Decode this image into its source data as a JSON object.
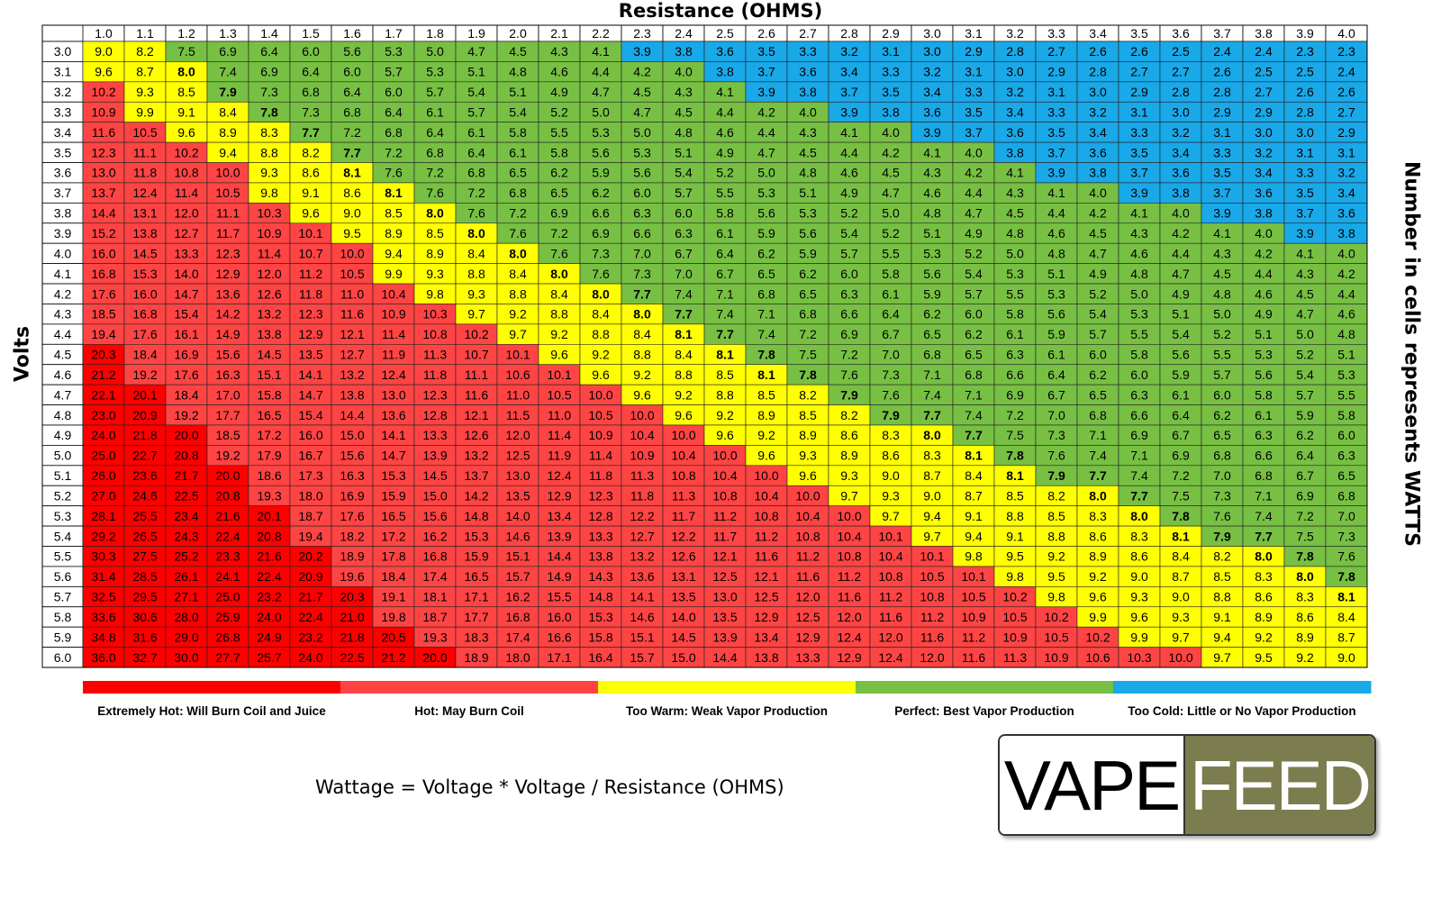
{
  "title": "Resistance (OHMS)",
  "ylabel": "Volts",
  "right_label": "Number in cells represents WATTS",
  "formula": "Wattage = Voltage * Voltage / Resistance (OHMS)",
  "logo": {
    "left_text": "VAPE",
    "right_text": "FEED"
  },
  "colors": {
    "extremely_hot": "#ff0000",
    "hot": "#ff4444",
    "too_warm": "#ffff00",
    "perfect": "#77c043",
    "too_cold": "#19a8e8",
    "logo_dark": "#7b7d4f"
  },
  "chart_data": {
    "type": "heatmap",
    "xlabel": "Resistance (OHMS)",
    "ylabel": "Volts",
    "columns": [
      "1.0",
      "1.1",
      "1.2",
      "1.3",
      "1.4",
      "1.5",
      "1.6",
      "1.7",
      "1.8",
      "1.9",
      "2.0",
      "2.1",
      "2.2",
      "2.3",
      "2.4",
      "2.5",
      "2.6",
      "2.7",
      "2.8",
      "2.9",
      "3.0",
      "3.1",
      "3.2",
      "3.3",
      "3.4",
      "3.5",
      "3.6",
      "3.7",
      "3.8",
      "3.9",
      "4.0"
    ],
    "rows": [
      "3.0",
      "3.1",
      "3.2",
      "3.3",
      "3.4",
      "3.5",
      "3.6",
      "3.7",
      "3.8",
      "3.9",
      "4.0",
      "4.1",
      "4.2",
      "4.3",
      "4.4",
      "4.5",
      "4.6",
      "4.7",
      "4.8",
      "4.9",
      "5.0",
      "5.1",
      "5.2",
      "5.3",
      "5.4",
      "5.5",
      "5.6",
      "5.7",
      "5.8",
      "5.9",
      "6.0"
    ],
    "values": [
      [
        "9.0",
        "8.2",
        "7.5",
        "6.9",
        "6.4",
        "6.0",
        "5.6",
        "5.3",
        "5.0",
        "4.7",
        "4.5",
        "4.3",
        "4.1",
        "3.9",
        "3.8",
        "3.6",
        "3.5",
        "3.3",
        "3.2",
        "3.1",
        "3.0",
        "2.9",
        "2.8",
        "2.7",
        "2.6",
        "2.6",
        "2.5",
        "2.4",
        "2.4",
        "2.3",
        "2.3"
      ],
      [
        "9.6",
        "8.7",
        "8.0",
        "7.4",
        "6.9",
        "6.4",
        "6.0",
        "5.7",
        "5.3",
        "5.1",
        "4.8",
        "4.6",
        "4.4",
        "4.2",
        "4.0",
        "3.8",
        "3.7",
        "3.6",
        "3.4",
        "3.3",
        "3.2",
        "3.1",
        "3.0",
        "2.9",
        "2.8",
        "2.7",
        "2.7",
        "2.6",
        "2.5",
        "2.5",
        "2.4"
      ],
      [
        "10.2",
        "9.3",
        "8.5",
        "7.9",
        "7.3",
        "6.8",
        "6.4",
        "6.0",
        "5.7",
        "5.4",
        "5.1",
        "4.9",
        "4.7",
        "4.5",
        "4.3",
        "4.1",
        "3.9",
        "3.8",
        "3.7",
        "3.5",
        "3.4",
        "3.3",
        "3.2",
        "3.1",
        "3.0",
        "2.9",
        "2.8",
        "2.8",
        "2.7",
        "2.6",
        "2.6"
      ],
      [
        "10.9",
        "9.9",
        "9.1",
        "8.4",
        "7.8",
        "7.3",
        "6.8",
        "6.4",
        "6.1",
        "5.7",
        "5.4",
        "5.2",
        "5.0",
        "4.7",
        "4.5",
        "4.4",
        "4.2",
        "4.0",
        "3.9",
        "3.8",
        "3.6",
        "3.5",
        "3.4",
        "3.3",
        "3.2",
        "3.1",
        "3.0",
        "2.9",
        "2.9",
        "2.8",
        "2.7"
      ],
      [
        "11.6",
        "10.5",
        "9.6",
        "8.9",
        "8.3",
        "7.7",
        "7.2",
        "6.8",
        "6.4",
        "6.1",
        "5.8",
        "5.5",
        "5.3",
        "5.0",
        "4.8",
        "4.6",
        "4.4",
        "4.3",
        "4.1",
        "4.0",
        "3.9",
        "3.7",
        "3.6",
        "3.5",
        "3.4",
        "3.3",
        "3.2",
        "3.1",
        "3.0",
        "3.0",
        "2.9"
      ],
      [
        "12.3",
        "11.1",
        "10.2",
        "9.4",
        "8.8",
        "8.2",
        "7.7",
        "7.2",
        "6.8",
        "6.4",
        "6.1",
        "5.8",
        "5.6",
        "5.3",
        "5.1",
        "4.9",
        "4.7",
        "4.5",
        "4.4",
        "4.2",
        "4.1",
        "4.0",
        "3.8",
        "3.7",
        "3.6",
        "3.5",
        "3.4",
        "3.3",
        "3.2",
        "3.1",
        "3.1"
      ],
      [
        "13.0",
        "11.8",
        "10.8",
        "10.0",
        "9.3",
        "8.6",
        "8.1",
        "7.6",
        "7.2",
        "6.8",
        "6.5",
        "6.2",
        "5.9",
        "5.6",
        "5.4",
        "5.2",
        "5.0",
        "4.8",
        "4.6",
        "4.5",
        "4.3",
        "4.2",
        "4.1",
        "3.9",
        "3.8",
        "3.7",
        "3.6",
        "3.5",
        "3.4",
        "3.3",
        "3.2"
      ],
      [
        "13.7",
        "12.4",
        "11.4",
        "10.5",
        "9.8",
        "9.1",
        "8.6",
        "8.1",
        "7.6",
        "7.2",
        "6.8",
        "6.5",
        "6.2",
        "6.0",
        "5.7",
        "5.5",
        "5.3",
        "5.1",
        "4.9",
        "4.7",
        "4.6",
        "4.4",
        "4.3",
        "4.1",
        "4.0",
        "3.9",
        "3.8",
        "3.7",
        "3.6",
        "3.5",
        "3.4"
      ],
      [
        "14.4",
        "13.1",
        "12.0",
        "11.1",
        "10.3",
        "9.6",
        "9.0",
        "8.5",
        "8.0",
        "7.6",
        "7.2",
        "6.9",
        "6.6",
        "6.3",
        "6.0",
        "5.8",
        "5.6",
        "5.3",
        "5.2",
        "5.0",
        "4.8",
        "4.7",
        "4.5",
        "4.4",
        "4.2",
        "4.1",
        "4.0",
        "3.9",
        "3.8",
        "3.7",
        "3.6"
      ],
      [
        "15.2",
        "13.8",
        "12.7",
        "11.7",
        "10.9",
        "10.1",
        "9.5",
        "8.9",
        "8.5",
        "8.0",
        "7.6",
        "7.2",
        "6.9",
        "6.6",
        "6.3",
        "6.1",
        "5.9",
        "5.6",
        "5.4",
        "5.2",
        "5.1",
        "4.9",
        "4.8",
        "4.6",
        "4.5",
        "4.3",
        "4.2",
        "4.1",
        "4.0",
        "3.9",
        "3.8"
      ],
      [
        "16.0",
        "14.5",
        "13.3",
        "12.3",
        "11.4",
        "10.7",
        "10.0",
        "9.4",
        "8.9",
        "8.4",
        "8.0",
        "7.6",
        "7.3",
        "7.0",
        "6.7",
        "6.4",
        "6.2",
        "5.9",
        "5.7",
        "5.5",
        "5.3",
        "5.2",
        "5.0",
        "4.8",
        "4.7",
        "4.6",
        "4.4",
        "4.3",
        "4.2",
        "4.1",
        "4.0"
      ],
      [
        "16.8",
        "15.3",
        "14.0",
        "12.9",
        "12.0",
        "11.2",
        "10.5",
        "9.9",
        "9.3",
        "8.8",
        "8.4",
        "8.0",
        "7.6",
        "7.3",
        "7.0",
        "6.7",
        "6.5",
        "6.2",
        "6.0",
        "5.8",
        "5.6",
        "5.4",
        "5.3",
        "5.1",
        "4.9",
        "4.8",
        "4.7",
        "4.5",
        "4.4",
        "4.3",
        "4.2"
      ],
      [
        "17.6",
        "16.0",
        "14.7",
        "13.6",
        "12.6",
        "11.8",
        "11.0",
        "10.4",
        "9.8",
        "9.3",
        "8.8",
        "8.4",
        "8.0",
        "7.7",
        "7.4",
        "7.1",
        "6.8",
        "6.5",
        "6.3",
        "6.1",
        "5.9",
        "5.7",
        "5.5",
        "5.3",
        "5.2",
        "5.0",
        "4.9",
        "4.8",
        "4.6",
        "4.5",
        "4.4"
      ],
      [
        "18.5",
        "16.8",
        "15.4",
        "14.2",
        "13.2",
        "12.3",
        "11.6",
        "10.9",
        "10.3",
        "9.7",
        "9.2",
        "8.8",
        "8.4",
        "8.0",
        "7.7",
        "7.4",
        "7.1",
        "6.8",
        "6.6",
        "6.4",
        "6.2",
        "6.0",
        "5.8",
        "5.6",
        "5.4",
        "5.3",
        "5.1",
        "5.0",
        "4.9",
        "4.7",
        "4.6"
      ],
      [
        "19.4",
        "17.6",
        "16.1",
        "14.9",
        "13.8",
        "12.9",
        "12.1",
        "11.4",
        "10.8",
        "10.2",
        "9.7",
        "9.2",
        "8.8",
        "8.4",
        "8.1",
        "7.7",
        "7.4",
        "7.2",
        "6.9",
        "6.7",
        "6.5",
        "6.2",
        "6.1",
        "5.9",
        "5.7",
        "5.5",
        "5.4",
        "5.2",
        "5.1",
        "5.0",
        "4.8"
      ],
      [
        "20.3",
        "18.4",
        "16.9",
        "15.6",
        "14.5",
        "13.5",
        "12.7",
        "11.9",
        "11.3",
        "10.7",
        "10.1",
        "9.6",
        "9.2",
        "8.8",
        "8.4",
        "8.1",
        "7.8",
        "7.5",
        "7.2",
        "7.0",
        "6.8",
        "6.5",
        "6.3",
        "6.1",
        "6.0",
        "5.8",
        "5.6",
        "5.5",
        "5.3",
        "5.2",
        "5.1"
      ],
      [
        "21.2",
        "19.2",
        "17.6",
        "16.3",
        "15.1",
        "14.1",
        "13.2",
        "12.4",
        "11.8",
        "11.1",
        "10.6",
        "10.1",
        "9.6",
        "9.2",
        "8.8",
        "8.5",
        "8.1",
        "7.8",
        "7.6",
        "7.3",
        "7.1",
        "6.8",
        "6.6",
        "6.4",
        "6.2",
        "6.0",
        "5.9",
        "5.7",
        "5.6",
        "5.4",
        "5.3"
      ],
      [
        "22.1",
        "20.1",
        "18.4",
        "17.0",
        "15.8",
        "14.7",
        "13.8",
        "13.0",
        "12.3",
        "11.6",
        "11.0",
        "10.5",
        "10.0",
        "9.6",
        "9.2",
        "8.8",
        "8.5",
        "8.2",
        "7.9",
        "7.6",
        "7.4",
        "7.1",
        "6.9",
        "6.7",
        "6.5",
        "6.3",
        "6.1",
        "6.0",
        "5.8",
        "5.7",
        "5.5"
      ],
      [
        "23.0",
        "20.9",
        "19.2",
        "17.7",
        "16.5",
        "15.4",
        "14.4",
        "13.6",
        "12.8",
        "12.1",
        "11.5",
        "11.0",
        "10.5",
        "10.0",
        "9.6",
        "9.2",
        "8.9",
        "8.5",
        "8.2",
        "7.9",
        "7.7",
        "7.4",
        "7.2",
        "7.0",
        "6.8",
        "6.6",
        "6.4",
        "6.2",
        "6.1",
        "5.9",
        "5.8"
      ],
      [
        "24.0",
        "21.8",
        "20.0",
        "18.5",
        "17.2",
        "16.0",
        "15.0",
        "14.1",
        "13.3",
        "12.6",
        "12.0",
        "11.4",
        "10.9",
        "10.4",
        "10.0",
        "9.6",
        "9.2",
        "8.9",
        "8.6",
        "8.3",
        "8.0",
        "7.7",
        "7.5",
        "7.3",
        "7.1",
        "6.9",
        "6.7",
        "6.5",
        "6.3",
        "6.2",
        "6.0"
      ],
      [
        "25.0",
        "22.7",
        "20.8",
        "19.2",
        "17.9",
        "16.7",
        "15.6",
        "14.7",
        "13.9",
        "13.2",
        "12.5",
        "11.9",
        "11.4",
        "10.9",
        "10.4",
        "10.0",
        "9.6",
        "9.3",
        "8.9",
        "8.6",
        "8.3",
        "8.1",
        "7.8",
        "7.6",
        "7.4",
        "7.1",
        "6.9",
        "6.8",
        "6.6",
        "6.4",
        "6.3"
      ],
      [
        "26.0",
        "23.6",
        "21.7",
        "20.0",
        "18.6",
        "17.3",
        "16.3",
        "15.3",
        "14.5",
        "13.7",
        "13.0",
        "12.4",
        "11.8",
        "11.3",
        "10.8",
        "10.4",
        "10.0",
        "9.6",
        "9.3",
        "9.0",
        "8.7",
        "8.4",
        "8.1",
        "7.9",
        "7.7",
        "7.4",
        "7.2",
        "7.0",
        "6.8",
        "6.7",
        "6.5"
      ],
      [
        "27.0",
        "24.6",
        "22.5",
        "20.8",
        "19.3",
        "18.0",
        "16.9",
        "15.9",
        "15.0",
        "14.2",
        "13.5",
        "12.9",
        "12.3",
        "11.8",
        "11.3",
        "10.8",
        "10.4",
        "10.0",
        "9.7",
        "9.3",
        "9.0",
        "8.7",
        "8.5",
        "8.2",
        "8.0",
        "7.7",
        "7.5",
        "7.3",
        "7.1",
        "6.9",
        "6.8"
      ],
      [
        "28.1",
        "25.5",
        "23.4",
        "21.6",
        "20.1",
        "18.7",
        "17.6",
        "16.5",
        "15.6",
        "14.8",
        "14.0",
        "13.4",
        "12.8",
        "12.2",
        "11.7",
        "11.2",
        "10.8",
        "10.4",
        "10.0",
        "9.7",
        "9.4",
        "9.1",
        "8.8",
        "8.5",
        "8.3",
        "8.0",
        "7.8",
        "7.6",
        "7.4",
        "7.2",
        "7.0"
      ],
      [
        "29.2",
        "26.5",
        "24.3",
        "22.4",
        "20.8",
        "19.4",
        "18.2",
        "17.2",
        "16.2",
        "15.3",
        "14.6",
        "13.9",
        "13.3",
        "12.7",
        "12.2",
        "11.7",
        "11.2",
        "10.8",
        "10.4",
        "10.1",
        "9.7",
        "9.4",
        "9.1",
        "8.8",
        "8.6",
        "8.3",
        "8.1",
        "7.9",
        "7.7",
        "7.5",
        "7.3"
      ],
      [
        "30.3",
        "27.5",
        "25.2",
        "23.3",
        "21.6",
        "20.2",
        "18.9",
        "17.8",
        "16.8",
        "15.9",
        "15.1",
        "14.4",
        "13.8",
        "13.2",
        "12.6",
        "12.1",
        "11.6",
        "11.2",
        "10.8",
        "10.4",
        "10.1",
        "9.8",
        "9.5",
        "9.2",
        "8.9",
        "8.6",
        "8.4",
        "8.2",
        "8.0",
        "7.8",
        "7.6"
      ],
      [
        "31.4",
        "28.5",
        "26.1",
        "24.1",
        "22.4",
        "20.9",
        "19.6",
        "18.4",
        "17.4",
        "16.5",
        "15.7",
        "14.9",
        "14.3",
        "13.6",
        "13.1",
        "12.5",
        "12.1",
        "11.6",
        "11.2",
        "10.8",
        "10.5",
        "10.1",
        "9.8",
        "9.5",
        "9.2",
        "9.0",
        "8.7",
        "8.5",
        "8.3",
        "8.0",
        "7.8"
      ],
      [
        "32.5",
        "29.5",
        "27.1",
        "25.0",
        "23.2",
        "21.7",
        "20.3",
        "19.1",
        "18.1",
        "17.1",
        "16.2",
        "15.5",
        "14.8",
        "14.1",
        "13.5",
        "13.0",
        "12.5",
        "12.0",
        "11.6",
        "11.2",
        "10.8",
        "10.5",
        "10.2",
        "9.8",
        "9.6",
        "9.3",
        "9.0",
        "8.8",
        "8.6",
        "8.3",
        "8.1"
      ],
      [
        "33.6",
        "30.6",
        "28.0",
        "25.9",
        "24.0",
        "22.4",
        "21.0",
        "19.8",
        "18.7",
        "17.7",
        "16.8",
        "16.0",
        "15.3",
        "14.6",
        "14.0",
        "13.5",
        "12.9",
        "12.5",
        "12.0",
        "11.6",
        "11.2",
        "10.9",
        "10.5",
        "10.2",
        "9.9",
        "9.6",
        "9.3",
        "9.1",
        "8.9",
        "8.6",
        "8.4"
      ],
      [
        "34.8",
        "31.6",
        "29.0",
        "26.8",
        "24.9",
        "23.2",
        "21.8",
        "20.5",
        "19.3",
        "18.3",
        "17.4",
        "16.6",
        "15.8",
        "15.1",
        "14.5",
        "13.9",
        "13.4",
        "12.9",
        "12.4",
        "12.0",
        "11.6",
        "11.2",
        "10.9",
        "10.5",
        "10.2",
        "9.9",
        "9.7",
        "9.4",
        "9.2",
        "8.9",
        "8.7"
      ],
      [
        "36.0",
        "32.7",
        "30.0",
        "27.7",
        "25.7",
        "24.0",
        "22.5",
        "21.2",
        "20.0",
        "18.9",
        "18.0",
        "17.1",
        "16.4",
        "15.7",
        "15.0",
        "14.4",
        "13.8",
        "13.3",
        "12.9",
        "12.4",
        "12.0",
        "11.6",
        "11.3",
        "10.9",
        "10.6",
        "10.3",
        "10.0",
        "9.7",
        "9.5",
        "9.2",
        "9.0"
      ]
    ],
    "legend": [
      {
        "label": "Extremely Hot: Will Burn Coil and Juice",
        "color": "#ff0000"
      },
      {
        "label": "Hot: May Burn Coil",
        "color": "#ff4444"
      },
      {
        "label": "Too Warm: Weak Vapor Production",
        "color": "#ffff00"
      },
      {
        "label": "Perfect: Best Vapor Production",
        "color": "#77c043"
      },
      {
        "label": "Too Cold: Little or No Vapor Production",
        "color": "#19a8e8"
      }
    ],
    "legend_position": "bottom"
  }
}
